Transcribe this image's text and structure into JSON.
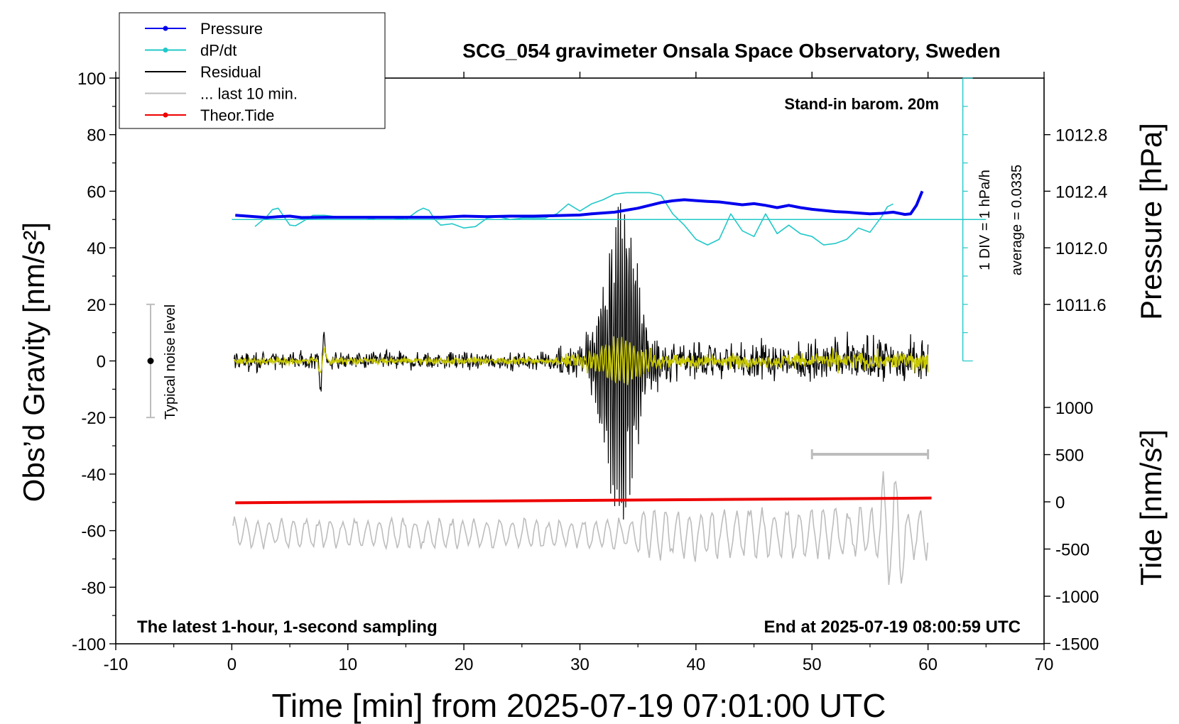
{
  "chart_data": {
    "type": "line",
    "title": "SCG_054 gravimeter Onsala Space Observatory, Sweden",
    "xlabel": "Time [min] from 2025-07-19 07:01:00 UTC",
    "ylabel_left": "Obs’d Gravity [nm/s²]",
    "ylabel_right_top": "Pressure [hPa]",
    "ylabel_right_bottom": "Tide [nm/s²]",
    "xlim": [
      -10,
      70
    ],
    "ylim": [
      -100,
      100
    ],
    "x_ticks": [
      "-10",
      "0",
      "10",
      "20",
      "30",
      "40",
      "50",
      "60",
      "70"
    ],
    "y_ticks": [
      "100",
      "80",
      "60",
      "40",
      "20",
      "0",
      "-20",
      "-40",
      "-60",
      "-80",
      "-100"
    ],
    "pressure_ticks": [
      "1012.8",
      "1012.4",
      "1012.0",
      "1011.6"
    ],
    "tide_ticks": [
      "1000",
      "500",
      "0",
      "-500",
      "-1000",
      "-1500"
    ],
    "annotations": {
      "stand_in": "Stand-in barom. 20m",
      "latest": "The latest 1-hour, 1-second sampling",
      "end_at": "End at 2025-07-19 08:00:59 UTC",
      "noise": "Typical noise level",
      "div": "1 DIV = 1 hPa/h",
      "average": "average = 0.0335"
    },
    "legend": [
      {
        "name": "Pressure",
        "color": "#0000ee",
        "marker": true
      },
      {
        "name": "dP/dt",
        "color": "#22c8c8",
        "marker": true
      },
      {
        "name": "Residual",
        "color": "#000000",
        "marker": false
      },
      {
        "name": "... last 10 min.",
        "color": "#bdbdbd",
        "marker": false
      },
      {
        "name": "Theor.Tide",
        "color": "#ee0000",
        "marker": true
      }
    ],
    "legend_position": "top-left",
    "series": {
      "pressure": {
        "color": "#0000ee",
        "x": [
          0.3,
          2,
          3,
          4,
          5,
          6,
          8,
          10,
          12,
          14,
          16,
          18,
          20,
          22,
          24,
          26,
          28,
          30,
          31,
          33,
          35,
          36,
          37,
          38,
          39,
          40,
          41,
          42,
          43,
          44,
          45,
          46,
          47,
          48,
          49,
          50,
          51,
          52,
          53,
          54,
          55,
          56,
          57,
          58,
          58.5,
          59,
          59.5
        ],
        "y": [
          51.5,
          51,
          50.7,
          51,
          51.2,
          50.7,
          50.8,
          50.8,
          50.8,
          50.8,
          50.8,
          50.8,
          51.2,
          51,
          51.2,
          51.2,
          51.4,
          51.6,
          52,
          52.6,
          54,
          55,
          56,
          56.6,
          57,
          56.7,
          56.4,
          56.2,
          55.7,
          55.2,
          55.6,
          55,
          54.2,
          55,
          54.2,
          53.6,
          53.2,
          52.8,
          52.6,
          52.3,
          52,
          52.2,
          52.6,
          51.8,
          52,
          55,
          60
        ]
      },
      "dpdt": {
        "color": "#22c8c8",
        "baseline_y": 50,
        "x": [
          2,
          3,
          3.5,
          4,
          4.5,
          5,
          5.5,
          6,
          7,
          8,
          9,
          10,
          11,
          12,
          13,
          14,
          15,
          16,
          16.5,
          17,
          17.5,
          18,
          19,
          20,
          21,
          22,
          23,
          24,
          25,
          26,
          27,
          28,
          29,
          30,
          31,
          32,
          33,
          34,
          35,
          36,
          37,
          38,
          39,
          40,
          41,
          42,
          43,
          44,
          45,
          46,
          47,
          48,
          49,
          50,
          51,
          52,
          53,
          54,
          55,
          56,
          56.5,
          57
        ],
        "y": [
          47.5,
          51,
          53.5,
          54,
          51,
          48,
          47.8,
          49,
          51.5,
          51.5,
          51,
          50.5,
          51,
          50.2,
          51,
          50.5,
          50,
          53,
          54,
          53.2,
          50,
          48,
          48.5,
          47,
          47.5,
          50.5,
          51,
          50,
          50.5,
          50.5,
          50.5,
          52,
          55.5,
          53,
          55.5,
          57,
          59,
          59.5,
          59.5,
          59.5,
          58.5,
          52,
          48,
          43,
          41,
          43,
          52,
          46,
          44,
          52,
          45,
          48,
          45,
          44,
          41,
          41.5,
          43,
          47,
          45.5,
          51,
          54.5,
          55.5
        ]
      },
      "tide": {
        "color": "#ee0000",
        "tide_x": [
          0.3,
          60.3
        ],
        "tide_y": [
          -10,
          40
        ]
      },
      "residual": {
        "color": "#000000",
        "x_range": [
          0.2,
          60
        ],
        "events": [
          {
            "t": 7.8,
            "amp": 12
          },
          {
            "t": 33.5,
            "amp": 50
          }
        ]
      },
      "last_10_min": {
        "color": "#bdbdbd",
        "x_range": [
          0.1,
          60
        ],
        "offset_y": -61
      },
      "filtered": {
        "color": "#c8c800"
      }
    },
    "noise_bar": {
      "x": -7,
      "y_center": 0,
      "half_range": 20
    },
    "scale_bar": {
      "x": [
        50,
        60
      ],
      "y": -33
    }
  }
}
